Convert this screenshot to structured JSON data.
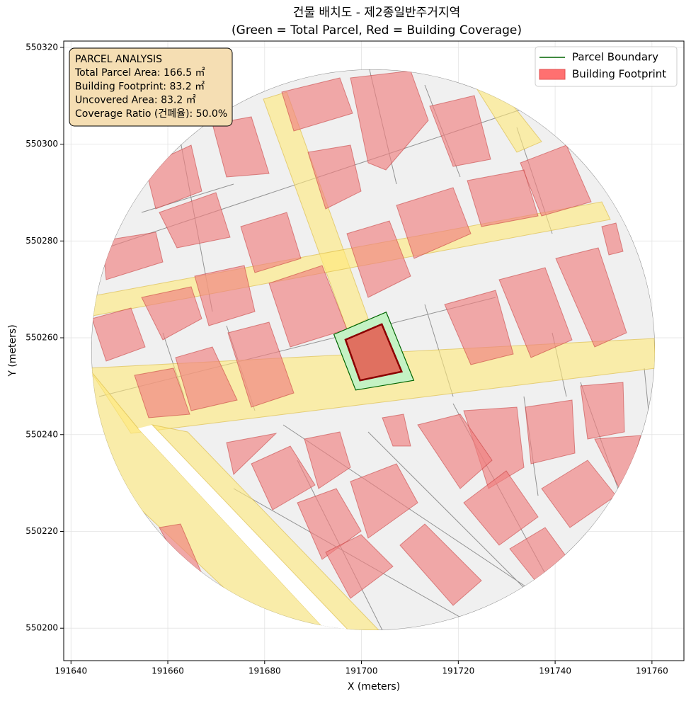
{
  "chart_data": {
    "type": "map",
    "title": "건물 배치도 - 제2종일반주거지역",
    "subtitle": "(Green = Total Parcel, Red = Building Coverage)",
    "x_label": "X (meters)",
    "y_label": "Y (meters)",
    "xlim": [
      191638.5,
      191766.6
    ],
    "ylim": [
      550193.3,
      550321.3
    ],
    "xticks": [
      191640,
      191660,
      191680,
      191700,
      191720,
      191740,
      191760
    ],
    "yticks": [
      550200,
      550220,
      550240,
      550260,
      550280,
      550300,
      550320
    ],
    "grid": true,
    "legend": "upper right",
    "annotation": [
      "PARCEL ANALYSIS",
      "Total Parcel Area: 166.5 ㎡",
      "Building Footprint: 83.2 ㎡",
      "Uncovered Area: 83.2 ㎡",
      "Coverage Ratio (건폐율): 50.0%"
    ],
    "series": [
      {
        "name": "Parcel Boundary",
        "color": "#006400",
        "fill": "#c4f2c4",
        "x": [
          191694.3,
          191705.1,
          191710.8,
          191698.8
        ],
        "values": [
          550260.7,
          550265.3,
          550251.2,
          550249.2
        ]
      },
      {
        "name": "Building Footprint",
        "color": "#8b0000",
        "fill": "#e07060",
        "x": [
          191696.7,
          191704.2,
          191708.3,
          191699.7
        ],
        "values": [
          550259.6,
          550262.8,
          550253.0,
          550251.2
        ]
      }
    ]
  }
}
